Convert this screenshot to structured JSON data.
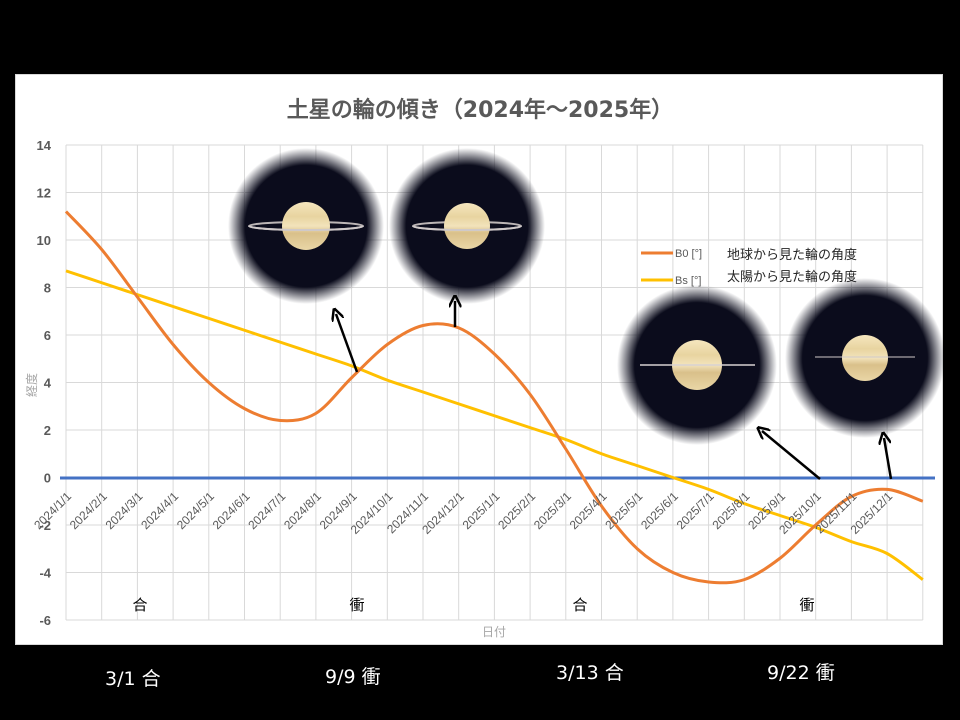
{
  "chart_data": {
    "type": "line",
    "title": "土星の輪の傾き（2024年〜2025年）",
    "xlabel": "日付",
    "ylabel": "経度",
    "ylim": [
      -6,
      14
    ],
    "yticks": [
      14,
      12,
      10,
      8,
      6,
      4,
      2,
      0,
      -2,
      -4,
      -6
    ],
    "grid": true,
    "legend_position": "upper right (inside plot)",
    "categories": [
      "2024/1/1",
      "2024/2/1",
      "2024/3/1",
      "2024/4/1",
      "2024/5/1",
      "2024/6/1",
      "2024/7/1",
      "2024/8/1",
      "2024/9/1",
      "2024/10/1",
      "2024/11/1",
      "2024/12/1",
      "2025/1/1",
      "2025/2/1",
      "2025/3/1",
      "2025/4/1",
      "2025/5/1",
      "2025/6/1",
      "2025/7/1",
      "2025/8/1",
      "2025/9/1",
      "2025/10/1",
      "2025/11/1",
      "2025/12/1"
    ],
    "series": [
      {
        "name": "B0 [°]",
        "description": "地球から見た輪の角度",
        "color": "#ED7D31",
        "values": [
          11.2,
          9.6,
          7.6,
          5.6,
          4.0,
          2.9,
          2.4,
          2.7,
          4.2,
          5.6,
          6.4,
          6.3,
          5.2,
          3.5,
          1.2,
          -1.2,
          -3.0,
          -4.0,
          -4.4,
          -4.3,
          -3.4,
          -2.0,
          -0.8,
          -0.5
        ],
        "end_value": -1.0
      },
      {
        "name": "Bs [°]",
        "description": "太陽から見た輪の角度",
        "color": "#FFC000",
        "values": [
          8.7,
          8.2,
          7.7,
          7.2,
          6.7,
          6.2,
          5.7,
          5.2,
          4.7,
          4.1,
          3.6,
          3.1,
          2.6,
          2.1,
          1.6,
          1.0,
          0.5,
          0.0,
          -0.5,
          -1.1,
          -1.6,
          -2.1,
          -2.7,
          -3.2
        ],
        "end_value": -4.3
      },
      {
        "name": "zero line",
        "color": "#4472C4",
        "values": [
          0
        ]
      }
    ],
    "annotations": [
      {
        "text": "合",
        "x": "2024/3/1"
      },
      {
        "text": "衝",
        "x": "2024/9/9"
      },
      {
        "text": "合",
        "x": "2025/3/13"
      },
      {
        "text": "衝",
        "x": "2025/9/22"
      }
    ]
  },
  "title": "土星の輪の傾き（2024年〜2025年）",
  "axis": {
    "x_title": "日付",
    "y_title": "経度"
  },
  "legend": {
    "b0_key": "B0 [°]",
    "b0_desc": "地球から見た輪の角度",
    "bs_key": "Bs [°]",
    "bs_desc": "太陽から見た輪の角度"
  },
  "events_in_chart": [
    "合",
    "衝",
    "合",
    "衝"
  ],
  "bottom_labels": [
    "3/1 合",
    "9/9 衝",
    "3/13 合",
    "9/22 衝"
  ],
  "saturn_images": [
    {
      "label": "saturn-ring-view-2024-09",
      "ring_tilt": "small"
    },
    {
      "label": "saturn-ring-view-2024-12",
      "ring_tilt": "small"
    },
    {
      "label": "saturn-ring-view-2025-09",
      "ring_tilt": "near-edge-on"
    },
    {
      "label": "saturn-ring-view-2025-12",
      "ring_tilt": "edge-on"
    }
  ],
  "colors": {
    "b0": "#ED7D31",
    "bs": "#FFC000",
    "zero": "#4472C4",
    "grid": "#d9d9d9"
  }
}
